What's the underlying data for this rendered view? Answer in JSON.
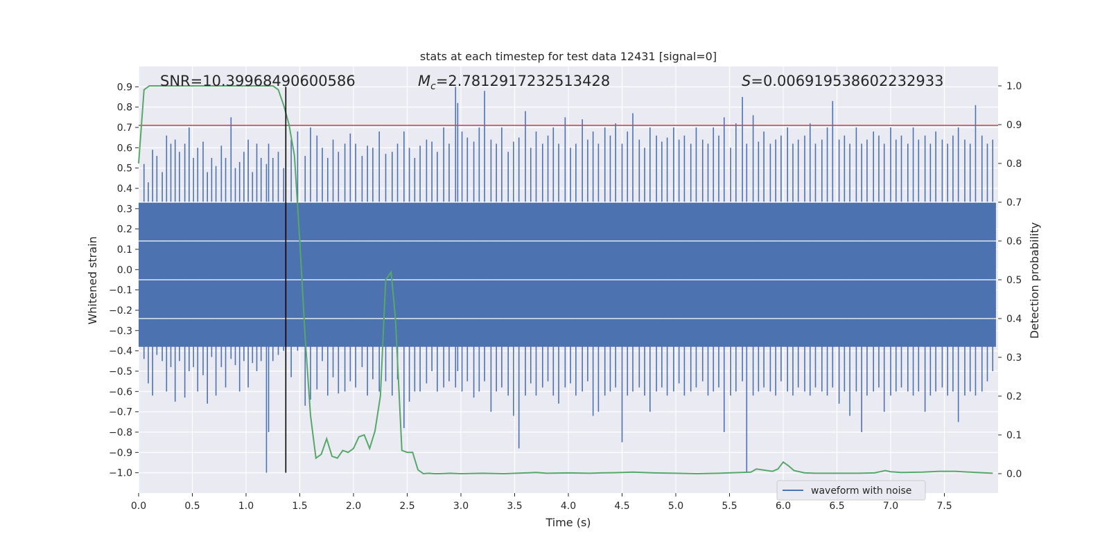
{
  "chart_data": {
    "type": "line",
    "title": "stats at each timestep for test data 12431 [signal=0]",
    "xlabel": "Time (s)",
    "ylabel": "Whitened strain",
    "y2label": "Detection probability",
    "xlim": [
      0.0,
      8.0
    ],
    "ylim": [
      -1.1,
      1.0
    ],
    "y2lim": [
      -0.05,
      1.05
    ],
    "x_ticks": [
      0.0,
      0.5,
      1.0,
      1.5,
      2.0,
      2.5,
      3.0,
      3.5,
      4.0,
      4.5,
      5.0,
      5.5,
      6.0,
      6.5,
      7.0,
      7.5
    ],
    "x_tick_labels": [
      "0.0",
      "0.5",
      "1.0",
      "1.5",
      "2.0",
      "2.5",
      "3.0",
      "3.5",
      "4.0",
      "4.5",
      "5.0",
      "5.5",
      "6.0",
      "6.5",
      "7.0",
      "7.5"
    ],
    "y_ticks": [
      0.9,
      0.8,
      0.7,
      0.6,
      0.5,
      0.4,
      0.3,
      0.2,
      0.1,
      0.0,
      -0.1,
      -0.2,
      -0.3,
      -0.4,
      -0.5,
      -0.6,
      -0.7,
      -0.8,
      -0.9,
      -1.0
    ],
    "y_tick_labels": [
      "0.9",
      "0.8",
      "0.7",
      "0.6",
      "0.5",
      "0.4",
      "0.3",
      "0.2",
      "0.1",
      "0.0",
      "−0.1",
      "−0.2",
      "−0.3",
      "−0.4",
      "−0.5",
      "−0.6",
      "−0.7",
      "−0.8",
      "−0.9",
      "−1.0"
    ],
    "y2_ticks": [
      1.0,
      0.9,
      0.8,
      0.7,
      0.6,
      0.5,
      0.4,
      0.3,
      0.2,
      0.1,
      0.0
    ],
    "y2_tick_labels": [
      "1.0",
      "0.9",
      "0.8",
      "0.7",
      "0.6",
      "0.5",
      "0.4",
      "0.3",
      "0.2",
      "0.1",
      "0.0"
    ],
    "grid": true,
    "legend": {
      "placement": "lower-center-right",
      "entries": [
        "waveform with noise"
      ]
    },
    "threshold_line": {
      "axis": "y",
      "value": 0.71,
      "color": "#c44e52"
    },
    "marker_line": {
      "axis": "x",
      "value": 1.37,
      "y_from": -1.0,
      "y_to": 0.9,
      "color": "#000000"
    },
    "annotations": {
      "snr": "SNR=10.39968490600586",
      "mc_symbol": "M",
      "mc_sub": "c",
      "mc_value": "=2.7812917232513428",
      "s_symbol": "S",
      "s_value": "=0.006919538602232933"
    },
    "waveform": {
      "name": "waveform with noise",
      "color": "#4c72b0",
      "band": [
        -0.38,
        0.33
      ],
      "spikes": [
        [
          0.05,
          0.52,
          -0.44
        ],
        [
          0.09,
          0.43,
          -0.56
        ],
        [
          0.13,
          0.59,
          -0.62
        ],
        [
          0.17,
          0.56,
          -0.42
        ],
        [
          0.22,
          0.48,
          -0.45
        ],
        [
          0.26,
          0.66,
          -0.6
        ],
        [
          0.3,
          0.62,
          -0.48
        ],
        [
          0.34,
          0.64,
          -0.65
        ],
        [
          0.38,
          0.58,
          -0.45
        ],
        [
          0.43,
          0.62,
          -0.63
        ],
        [
          0.47,
          0.7,
          -0.5
        ],
        [
          0.51,
          0.55,
          -0.48
        ],
        [
          0.55,
          0.6,
          -0.6
        ],
        [
          0.6,
          0.63,
          -0.52
        ],
        [
          0.64,
          0.48,
          -0.66
        ],
        [
          0.68,
          0.55,
          -0.43
        ],
        [
          0.72,
          0.51,
          -0.62
        ],
        [
          0.77,
          0.61,
          -0.48
        ],
        [
          0.81,
          0.55,
          -0.58
        ],
        [
          0.86,
          0.75,
          -0.44
        ],
        [
          0.9,
          0.5,
          -0.47
        ],
        [
          0.94,
          0.53,
          -0.6
        ],
        [
          0.98,
          0.58,
          -0.45
        ],
        [
          1.02,
          0.64,
          -0.58
        ],
        [
          1.06,
          0.48,
          -0.46
        ],
        [
          1.1,
          0.62,
          -0.5
        ],
        [
          1.14,
          0.55,
          -0.45
        ],
        [
          1.19,
          0.52,
          -1.0
        ],
        [
          1.21,
          0.62,
          -0.8
        ],
        [
          1.25,
          0.55,
          -0.45
        ],
        [
          1.3,
          0.58,
          -0.42
        ],
        [
          1.35,
          0.5,
          -0.4
        ],
        [
          1.42,
          0.64,
          -0.53
        ],
        [
          1.48,
          0.68,
          -0.4
        ],
        [
          1.55,
          0.56,
          -0.67
        ],
        [
          1.6,
          0.7,
          -0.64
        ],
        [
          1.66,
          0.66,
          -0.59
        ],
        [
          1.71,
          0.6,
          -0.45
        ],
        [
          1.76,
          0.55,
          -0.62
        ],
        [
          1.81,
          0.64,
          -0.53
        ],
        [
          1.86,
          0.58,
          -0.61
        ],
        [
          1.92,
          0.62,
          -0.6
        ],
        [
          1.97,
          0.67,
          -0.55
        ],
        [
          2.02,
          0.62,
          -0.58
        ],
        [
          2.08,
          0.56,
          -0.48
        ],
        [
          2.13,
          0.61,
          -0.62
        ],
        [
          2.18,
          0.6,
          -0.54
        ],
        [
          2.24,
          0.68,
          -0.6
        ],
        [
          2.3,
          0.57,
          -0.55
        ],
        [
          2.36,
          0.58,
          -0.62
        ],
        [
          2.41,
          0.62,
          -0.54
        ],
        [
          2.47,
          0.68,
          -0.78
        ],
        [
          2.52,
          0.6,
          -0.65
        ],
        [
          2.57,
          0.55,
          -0.6
        ],
        [
          2.62,
          0.61,
          -0.6
        ],
        [
          2.68,
          0.64,
          -0.56
        ],
        [
          2.73,
          0.63,
          -0.5
        ],
        [
          2.78,
          0.58,
          -0.6
        ],
        [
          2.84,
          0.7,
          -0.58
        ],
        [
          2.89,
          0.62,
          -0.55
        ],
        [
          2.95,
          0.9,
          -0.58
        ],
        [
          2.97,
          0.82,
          -0.5
        ],
        [
          3.01,
          0.68,
          -0.6
        ],
        [
          3.06,
          0.65,
          -0.55
        ],
        [
          3.12,
          0.63,
          -0.63
        ],
        [
          3.17,
          0.7,
          -0.6
        ],
        [
          3.22,
          0.88,
          -0.55
        ],
        [
          3.28,
          0.64,
          -0.7
        ],
        [
          3.33,
          0.62,
          -0.6
        ],
        [
          3.38,
          0.7,
          -0.58
        ],
        [
          3.44,
          0.58,
          -0.62
        ],
        [
          3.49,
          0.63,
          -0.72
        ],
        [
          3.54,
          0.65,
          -0.88
        ],
        [
          3.6,
          0.78,
          -0.62
        ],
        [
          3.65,
          0.6,
          -0.56
        ],
        [
          3.7,
          0.68,
          -0.62
        ],
        [
          3.76,
          0.62,
          -0.58
        ],
        [
          3.81,
          0.66,
          -0.55
        ],
        [
          3.86,
          0.7,
          -0.62
        ],
        [
          3.91,
          0.62,
          -0.66
        ],
        [
          3.97,
          0.75,
          -0.58
        ],
        [
          4.02,
          0.6,
          -0.56
        ],
        [
          4.07,
          0.62,
          -0.62
        ],
        [
          4.13,
          0.74,
          -0.6
        ],
        [
          4.18,
          0.64,
          -0.55
        ],
        [
          4.23,
          0.68,
          -0.72
        ],
        [
          4.28,
          0.62,
          -0.7
        ],
        [
          4.34,
          0.7,
          -0.62
        ],
        [
          4.39,
          0.66,
          -0.6
        ],
        [
          4.44,
          0.72,
          -0.58
        ],
        [
          4.5,
          0.62,
          -0.85
        ],
        [
          4.55,
          0.68,
          -0.62
        ],
        [
          4.6,
          0.77,
          -0.6
        ],
        [
          4.66,
          0.64,
          -0.58
        ],
        [
          4.71,
          0.6,
          -0.62
        ],
        [
          4.76,
          0.7,
          -0.7
        ],
        [
          4.82,
          0.66,
          -0.6
        ],
        [
          4.87,
          0.63,
          -0.58
        ],
        [
          4.92,
          0.65,
          -0.62
        ],
        [
          4.98,
          0.7,
          -0.6
        ],
        [
          5.03,
          0.64,
          -0.56
        ],
        [
          5.08,
          0.66,
          -0.62
        ],
        [
          5.14,
          0.62,
          -0.6
        ],
        [
          5.19,
          0.7,
          -0.58
        ],
        [
          5.25,
          0.64,
          -0.55
        ],
        [
          5.3,
          0.62,
          -0.62
        ],
        [
          5.35,
          0.7,
          -0.6
        ],
        [
          5.4,
          0.66,
          -0.58
        ],
        [
          5.45,
          0.75,
          -0.8
        ],
        [
          5.51,
          0.6,
          -0.62
        ],
        [
          5.56,
          0.72,
          -0.6
        ],
        [
          5.62,
          0.85,
          -0.55
        ],
        [
          5.66,
          0.62,
          -1.0
        ],
        [
          5.72,
          0.76,
          -0.62
        ],
        [
          5.77,
          0.63,
          -0.6
        ],
        [
          5.82,
          0.68,
          -0.58
        ],
        [
          5.88,
          0.62,
          -0.6
        ],
        [
          5.93,
          0.64,
          -0.62
        ],
        [
          5.98,
          0.66,
          -0.55
        ],
        [
          6.04,
          0.7,
          -0.6
        ],
        [
          6.09,
          0.62,
          -0.62
        ],
        [
          6.14,
          0.64,
          -0.58
        ],
        [
          6.2,
          0.66,
          -0.6
        ],
        [
          6.25,
          0.72,
          -0.62
        ],
        [
          6.3,
          0.62,
          -0.58
        ],
        [
          6.36,
          0.64,
          -0.6
        ],
        [
          6.41,
          0.7,
          -0.62
        ],
        [
          6.46,
          0.83,
          -0.58
        ],
        [
          6.52,
          0.64,
          -0.66
        ],
        [
          6.57,
          0.66,
          -0.6
        ],
        [
          6.62,
          0.62,
          -0.72
        ],
        [
          6.68,
          0.7,
          -0.6
        ],
        [
          6.73,
          0.62,
          -0.8
        ],
        [
          6.78,
          0.64,
          -0.62
        ],
        [
          6.84,
          0.68,
          -0.6
        ],
        [
          6.89,
          0.66,
          -0.58
        ],
        [
          6.94,
          0.62,
          -0.7
        ],
        [
          7.0,
          0.7,
          -0.62
        ],
        [
          7.05,
          0.64,
          -0.6
        ],
        [
          7.1,
          0.66,
          -0.58
        ],
        [
          7.16,
          0.62,
          -0.6
        ],
        [
          7.21,
          0.7,
          -0.62
        ],
        [
          7.26,
          0.64,
          -0.6
        ],
        [
          7.32,
          0.66,
          -0.7
        ],
        [
          7.37,
          0.62,
          -0.62
        ],
        [
          7.42,
          0.68,
          -0.6
        ],
        [
          7.48,
          0.64,
          -0.58
        ],
        [
          7.53,
          0.62,
          -0.62
        ],
        [
          7.58,
          0.66,
          -0.6
        ],
        [
          7.63,
          0.7,
          -0.75
        ],
        [
          7.69,
          0.64,
          -0.62
        ],
        [
          7.74,
          0.62,
          -0.6
        ],
        [
          7.79,
          0.81,
          -0.62
        ],
        [
          7.85,
          0.66,
          -0.6
        ],
        [
          7.9,
          0.62,
          -0.55
        ],
        [
          7.95,
          0.64,
          -0.5
        ]
      ]
    },
    "probability": {
      "color": "#55a868",
      "x": [
        0.0,
        0.05,
        0.1,
        0.2,
        0.4,
        0.6,
        0.8,
        1.0,
        1.1,
        1.2,
        1.25,
        1.3,
        1.35,
        1.4,
        1.45,
        1.5,
        1.55,
        1.6,
        1.65,
        1.7,
        1.75,
        1.8,
        1.85,
        1.9,
        1.95,
        2.0,
        2.05,
        2.1,
        2.15,
        2.2,
        2.25,
        2.3,
        2.35,
        2.39,
        2.45,
        2.5,
        2.55,
        2.6,
        2.65,
        2.7,
        2.75,
        2.8,
        2.9,
        3.0,
        3.2,
        3.4,
        3.6,
        3.7,
        3.8,
        4.0,
        4.2,
        4.3,
        4.5,
        4.6,
        4.8,
        5.0,
        5.2,
        5.4,
        5.6,
        5.7,
        5.75,
        5.8,
        5.9,
        5.95,
        6.0,
        6.05,
        6.1,
        6.2,
        6.3,
        6.5,
        6.7,
        6.85,
        6.95,
        7.0,
        7.1,
        7.3,
        7.45,
        7.6,
        7.8,
        7.95
      ],
      "values": [
        0.8,
        0.99,
        1.0,
        1.0,
        1.0,
        1.0,
        1.0,
        1.0,
        1.0,
        1.0,
        1.0,
        0.99,
        0.95,
        0.9,
        0.82,
        0.6,
        0.35,
        0.15,
        0.04,
        0.05,
        0.09,
        0.045,
        0.04,
        0.06,
        0.055,
        0.065,
        0.095,
        0.1,
        0.065,
        0.11,
        0.2,
        0.5,
        0.52,
        0.4,
        0.06,
        0.055,
        0.055,
        0.01,
        0.0,
        0.001,
        0.0,
        0.0,
        0.001,
        0.0,
        0.001,
        0.0,
        0.002,
        0.003,
        0.001,
        0.002,
        0.001,
        0.002,
        0.003,
        0.004,
        0.002,
        0.001,
        0.0,
        0.001,
        0.003,
        0.004,
        0.012,
        0.01,
        0.006,
        0.012,
        0.03,
        0.02,
        0.008,
        0.002,
        0.001,
        0.001,
        0.001,
        0.002,
        0.008,
        0.005,
        0.003,
        0.004,
        0.006,
        0.006,
        0.003,
        0.001
      ]
    }
  }
}
